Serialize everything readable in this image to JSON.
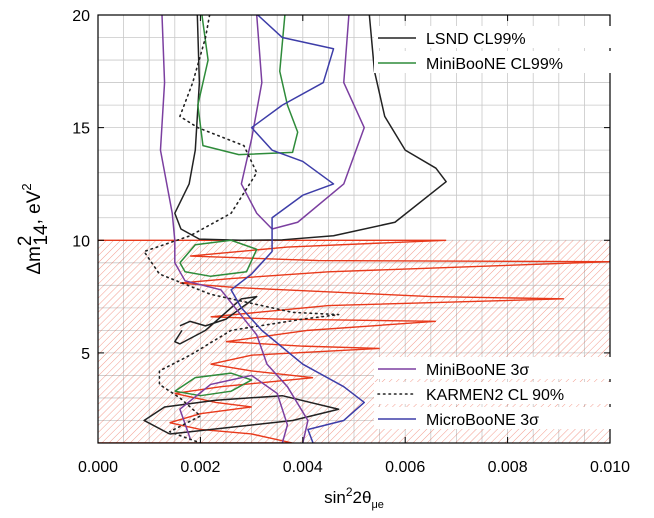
{
  "chart_data": {
    "type": "line",
    "title": "",
    "xlabel": {
      "base": "sin",
      "sup": "2",
      "mid": "2θ",
      "sub": "μe"
    },
    "ylabel": {
      "base": "Δm",
      "sup": "2",
      "sub": "14",
      "tail": ", eV",
      "sup2": "2"
    },
    "xlim": [
      0.0,
      0.01
    ],
    "ylim": [
      1.0,
      20.0
    ],
    "x_ticks": [
      "0.000",
      "0.002",
      "0.004",
      "0.006",
      "0.008",
      "0.010"
    ],
    "y_ticks": [
      "5",
      "10",
      "15",
      "20"
    ],
    "grid": true,
    "legend_top": [
      {
        "label": "LSND CL99%",
        "color": "#222222",
        "style": "solid"
      },
      {
        "label": "MiniBooNE CL99%",
        "color": "#2e8b3a",
        "style": "solid"
      }
    ],
    "legend_bottom": [
      {
        "label": "MiniBooNE 3σ",
        "color": "#7b3fa0",
        "style": "solid"
      },
      {
        "label": "KARMEN2 CL 90%",
        "color": "#222222",
        "style": "dotted"
      },
      {
        "label": "MicroBooNE 3σ",
        "color": "#3d3da8",
        "style": "solid"
      }
    ],
    "series": [
      {
        "name": "LSND CL99%",
        "color": "#222222",
        "style": "solid",
        "points": [
          [
            0.00194,
            20
          ],
          [
            0.00198,
            17
          ],
          [
            0.0019,
            14
          ],
          [
            0.00178,
            12.5
          ],
          [
            0.0015,
            11.2
          ],
          [
            0.00162,
            10.5
          ],
          [
            0.00198,
            10.05
          ],
          [
            0.0028,
            10
          ],
          [
            0.0036,
            10.02
          ],
          [
            0.0046,
            10.2
          ],
          [
            0.0058,
            10.8
          ],
          [
            0.0068,
            12.6
          ],
          [
            0.0066,
            13.2
          ],
          [
            0.006,
            14
          ],
          [
            0.0056,
            15.5
          ],
          [
            0.0054,
            17.5
          ],
          [
            0.0053,
            20
          ]
        ],
        "points2": [
          [
            0.00164,
            6.0
          ],
          [
            0.0015,
            5.5
          ],
          [
            0.0016,
            5.4
          ],
          [
            0.0021,
            6.0
          ],
          [
            0.0028,
            7.4
          ],
          [
            0.0031,
            7.5
          ],
          [
            0.0025,
            6.5
          ],
          [
            0.0021,
            6.2
          ],
          [
            0.0018,
            6.4
          ],
          [
            0.0016,
            6.2
          ]
        ],
        "points3": [
          [
            0.0014,
            1.4
          ],
          [
            0.0009,
            2.0
          ],
          [
            0.0013,
            2.6
          ],
          [
            0.0023,
            2.9
          ],
          [
            0.0036,
            3.1
          ],
          [
            0.0047,
            2.5
          ],
          [
            0.0038,
            2.0
          ],
          [
            0.0026,
            1.7
          ],
          [
            0.0018,
            1.5
          ],
          [
            0.0014,
            1.4
          ]
        ]
      },
      {
        "name": "MiniBooNE CL99%",
        "color": "#2e8b3a",
        "style": "solid",
        "points": [
          [
            0.00203,
            20
          ],
          [
            0.00215,
            18
          ],
          [
            0.00195,
            16
          ],
          [
            0.00205,
            14.2
          ],
          [
            0.00275,
            13.8
          ],
          [
            0.0038,
            13.9
          ],
          [
            0.0039,
            14.8
          ],
          [
            0.0037,
            16
          ],
          [
            0.00355,
            17.5
          ],
          [
            0.00365,
            20
          ]
        ],
        "points2": [
          [
            0.0016,
            9.0
          ],
          [
            0.0019,
            9.8
          ],
          [
            0.0026,
            10.0
          ],
          [
            0.0031,
            9.6
          ],
          [
            0.0029,
            8.6
          ],
          [
            0.0022,
            8.4
          ],
          [
            0.0017,
            8.6
          ],
          [
            0.0016,
            9.0
          ]
        ],
        "points3": [
          [
            0.0015,
            3.3
          ],
          [
            0.0019,
            3.9
          ],
          [
            0.0026,
            4.1
          ],
          [
            0.003,
            3.8
          ],
          [
            0.0026,
            3.3
          ],
          [
            0.002,
            3.1
          ],
          [
            0.0015,
            3.3
          ]
        ]
      },
      {
        "name": "MiniBooNE 3σ",
        "color": "#7b3fa0",
        "style": "solid",
        "points": [
          [
            0.00125,
            20
          ],
          [
            0.0013,
            17
          ],
          [
            0.00122,
            14
          ],
          [
            0.00145,
            11.2
          ],
          [
            0.0015,
            10
          ],
          [
            0.0015,
            9
          ],
          [
            0.0017,
            8.2
          ],
          [
            0.0024,
            7.8
          ],
          [
            0.0031,
            5.8
          ],
          [
            0.0033,
            4.5
          ],
          [
            0.0037,
            3.5
          ],
          [
            0.0041,
            2.0
          ],
          [
            0.004,
            1.0
          ]
        ],
        "points2": [
          [
            0.0031,
            20
          ],
          [
            0.0032,
            17
          ],
          [
            0.003,
            14.5
          ],
          [
            0.0028,
            12.5
          ],
          [
            0.0031,
            11.2
          ],
          [
            0.0034,
            10.5
          ],
          [
            0.0039,
            10.8
          ],
          [
            0.0048,
            12.5
          ],
          [
            0.0052,
            15
          ],
          [
            0.0048,
            17
          ],
          [
            0.0049,
            20
          ]
        ],
        "points3": [
          [
            0.0018,
            1.2
          ],
          [
            0.0016,
            2.5
          ],
          [
            0.0022,
            3.6
          ],
          [
            0.003,
            4.0
          ],
          [
            0.0035,
            3.2
          ],
          [
            0.0037,
            1.8
          ],
          [
            0.0036,
            1.0
          ]
        ]
      },
      {
        "name": "KARMEN2 CL 90%",
        "color": "#222222",
        "style": "dotted",
        "points": [
          [
            0.00218,
            20
          ],
          [
            0.0021,
            19
          ],
          [
            0.00185,
            17
          ],
          [
            0.0016,
            15.5
          ],
          [
            0.00195,
            15
          ],
          [
            0.00285,
            14.2
          ],
          [
            0.0031,
            13
          ],
          [
            0.0026,
            11.2
          ],
          [
            0.0018,
            10.2
          ],
          [
            0.0009,
            9.5
          ],
          [
            0.0012,
            8.5
          ],
          [
            0.0022,
            7.6
          ],
          [
            0.0038,
            6.8
          ],
          [
            0.0047,
            6.7
          ],
          [
            0.004,
            6.5
          ],
          [
            0.0026,
            6.0
          ],
          [
            0.0018,
            4.9
          ],
          [
            0.0012,
            4.2
          ],
          [
            0.0012,
            3.6
          ],
          [
            0.0016,
            3.0
          ],
          [
            0.002,
            2.2
          ],
          [
            0.0014,
            1.5
          ],
          [
            0.002,
            1.0
          ]
        ]
      },
      {
        "name": "MicroBooNE 3σ",
        "color": "#3d3da8",
        "style": "solid",
        "points": [
          [
            0.00312,
            20
          ],
          [
            0.0036,
            19
          ],
          [
            0.0046,
            18.5
          ],
          [
            0.0044,
            17
          ],
          [
            0.0036,
            16
          ],
          [
            0.003,
            15
          ],
          [
            0.0034,
            14
          ],
          [
            0.004,
            13.5
          ],
          [
            0.0046,
            12.5
          ],
          [
            0.004,
            12
          ],
          [
            0.0034,
            11
          ],
          [
            0.0034,
            10.2
          ],
          [
            0.0034,
            9.5
          ],
          [
            0.003,
            8.5
          ],
          [
            0.0026,
            7.8
          ],
          [
            0.0028,
            7.0
          ],
          [
            0.0032,
            6.0
          ],
          [
            0.004,
            4.5
          ],
          [
            0.0048,
            3.5
          ],
          [
            0.0052,
            2.8
          ],
          [
            0.0048,
            2.0
          ],
          [
            0.0041,
            1.6
          ],
          [
            0.0042,
            1.0
          ]
        ]
      }
    ],
    "allowed_region": {
      "name": "allowed (red hatched)",
      "color": "#e8391b",
      "ymax": 10.0,
      "boundary": [
        [
          0.0,
          10
        ],
        [
          0.0068,
          10
        ],
        [
          0.0037,
          9.7
        ],
        [
          0.0018,
          9.3
        ],
        [
          0.0043,
          9.1
        ],
        [
          0.01,
          9.05
        ],
        [
          0.0045,
          8.6
        ],
        [
          0.0026,
          8.3
        ],
        [
          0.0016,
          8.1
        ],
        [
          0.0027,
          7.9
        ],
        [
          0.0065,
          7.5
        ],
        [
          0.0091,
          7.4
        ],
        [
          0.0045,
          7.1
        ],
        [
          0.0022,
          6.6
        ],
        [
          0.0035,
          6.5
        ],
        [
          0.0066,
          6.4
        ],
        [
          0.0041,
          6.0
        ],
        [
          0.0025,
          5.5
        ],
        [
          0.004,
          5.3
        ],
        [
          0.0055,
          5.2
        ],
        [
          0.003,
          4.9
        ],
        [
          0.0022,
          4.5
        ],
        [
          0.003,
          4.2
        ],
        [
          0.0042,
          3.9
        ],
        [
          0.0024,
          3.5
        ],
        [
          0.0015,
          3.2
        ],
        [
          0.0023,
          2.8
        ],
        [
          0.003,
          2.6
        ],
        [
          0.002,
          2.3
        ],
        [
          0.0014,
          1.9
        ],
        [
          0.002,
          1.6
        ],
        [
          0.003,
          1.4
        ],
        [
          0.0038,
          1.0
        ],
        [
          0.0,
          1.0
        ]
      ]
    }
  }
}
